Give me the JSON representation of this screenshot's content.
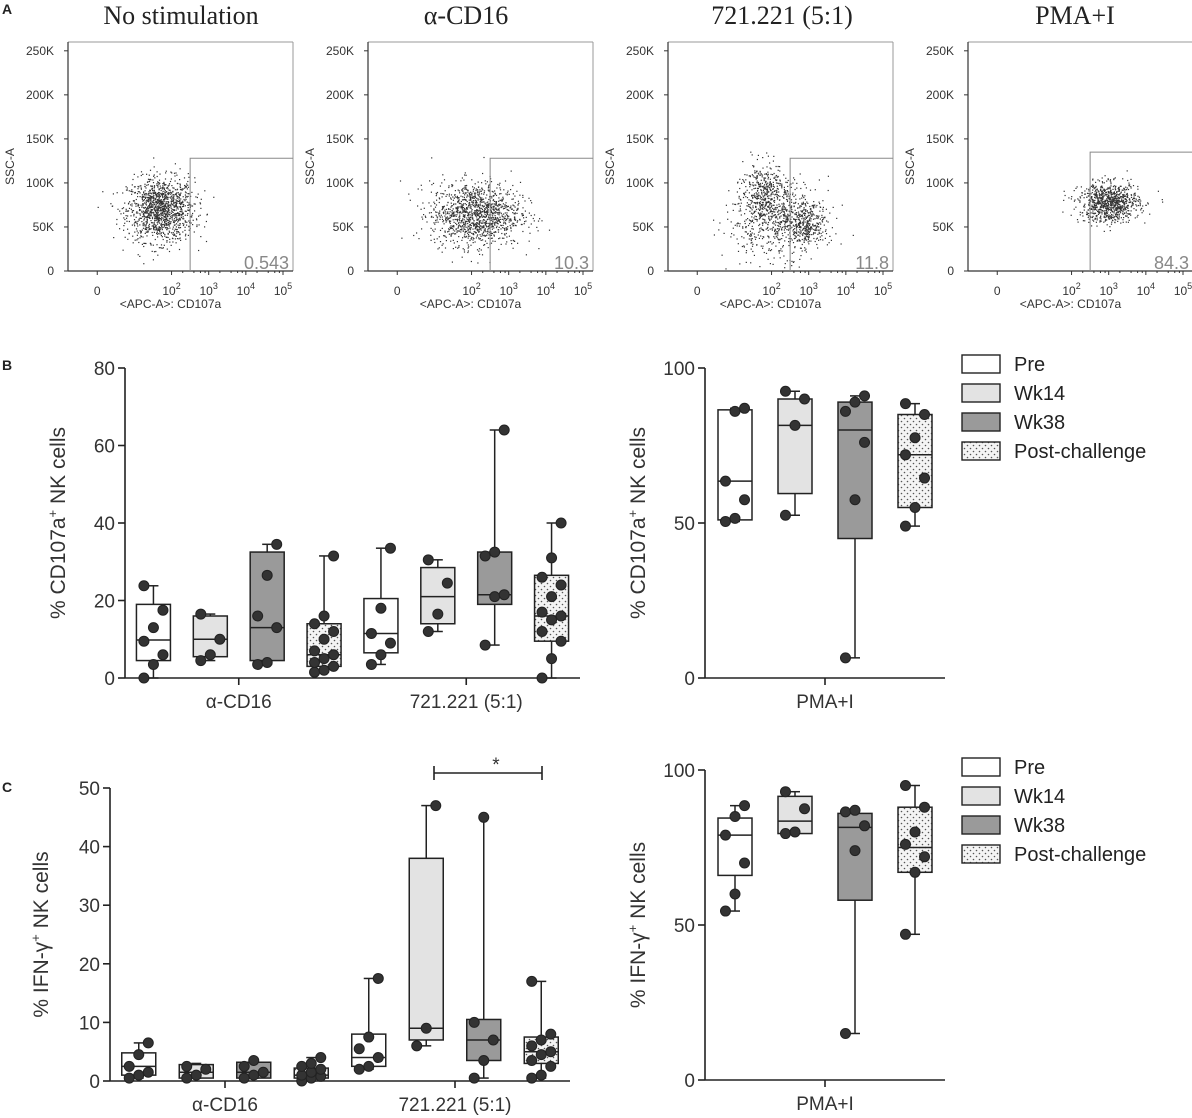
{
  "figure": {
    "panel_labels": [
      "A",
      "B",
      "C"
    ],
    "legend_b": [
      "Pre",
      "Wk14",
      "Wk38",
      "Post-challenge"
    ],
    "legend_c": [
      "Pre",
      "Wk14",
      "Wk38",
      "Post-challenge"
    ],
    "significance_mark": "*"
  },
  "chart_data": [
    {
      "type": "scatter",
      "title": "No stimulation",
      "xlabel": "<APC-A>: CD107a",
      "ylabel": "SSC-A",
      "y_ticks": [
        "0",
        "50K",
        "100K",
        "150K",
        "200K",
        "250K"
      ],
      "x_ticks": [
        "0",
        "10",
        "10",
        "10",
        "10"
      ],
      "x_tick_exponents": [
        "",
        "2",
        "3",
        "4",
        "5"
      ],
      "gate_percent": "0.543",
      "population": {
        "center_log_x": 1.7,
        "center_y": 70000,
        "spread_log_x": 0.45,
        "spread_y": 18000,
        "n": 1300
      }
    },
    {
      "type": "scatter",
      "title": "α-CD16",
      "xlabel": "<APC-A>: CD107a",
      "ylabel": "SSC-A",
      "y_ticks": [
        "0",
        "50K",
        "100K",
        "150K",
        "200K",
        "250K"
      ],
      "x_ticks": [
        "0",
        "10",
        "10",
        "10",
        "10"
      ],
      "x_tick_exponents": [
        "",
        "2",
        "3",
        "4",
        "5"
      ],
      "gate_percent": "10.3",
      "population": {
        "center_log_x": 2.1,
        "center_y": 65000,
        "spread_log_x": 0.6,
        "spread_y": 18000,
        "n": 1300
      }
    },
    {
      "type": "scatter",
      "title": "721.221 (5:1)",
      "xlabel": "<APC-A>: CD107a",
      "ylabel": "SSC-A",
      "y_ticks": [
        "0",
        "50K",
        "100K",
        "150K",
        "200K",
        "250K"
      ],
      "x_ticks": [
        "0",
        "10",
        "10",
        "10",
        "10"
      ],
      "x_tick_exponents": [
        "",
        "2",
        "3",
        "4",
        "5"
      ],
      "gate_percent": "11.8",
      "population": {
        "center_log_x": 2.1,
        "center_y": 62000,
        "spread_log_x": 0.6,
        "spread_y": 22000,
        "n": 1300
      }
    },
    {
      "type": "scatter",
      "title": "PMA+I",
      "xlabel": "<APC-A>: CD107a",
      "ylabel": "SSC-A",
      "y_ticks": [
        "0",
        "50K",
        "100K",
        "150K",
        "200K",
        "250K"
      ],
      "x_ticks": [
        "0",
        "10",
        "10",
        "10",
        "10"
      ],
      "x_tick_exponents": [
        "",
        "2",
        "3",
        "4",
        "5"
      ],
      "gate_percent": "84.3",
      "population": {
        "center_log_x": 3.0,
        "center_y": 78000,
        "spread_log_x": 0.4,
        "spread_y": 11000,
        "n": 900
      }
    },
    {
      "type": "box",
      "ylabel": "% CD107a+ NK cells",
      "ylabel_main": "% CD107a",
      "ylabel_sup": "+",
      "ylabel_rest": " NK cells",
      "ylim": [
        0,
        80
      ],
      "y_ticks": [
        "0",
        "20",
        "40",
        "60",
        "80"
      ],
      "categories": [
        "α-CD16",
        "721.221 (5:1)"
      ],
      "series": [
        {
          "name": "Pre",
          "fill": "#ffffff",
          "pattern": false,
          "boxes": [
            {
              "min": 0,
              "q1": 4.5,
              "median": 9.8,
              "q3": 19,
              "max": 23.8,
              "points": [
                0,
                3.5,
                6,
                9.5,
                13,
                17.5,
                23.8
              ]
            },
            {
              "min": 3.5,
              "q1": 6.5,
              "median": 11.5,
              "q3": 20.5,
              "max": 33.5,
              "points": [
                3.5,
                6,
                9,
                11.5,
                18,
                33.5
              ]
            }
          ]
        },
        {
          "name": "Wk14",
          "fill": "#e3e3e3",
          "pattern": false,
          "boxes": [
            {
              "min": 4.5,
              "q1": 5.5,
              "median": 10,
              "q3": 16,
              "max": 16.5,
              "points": [
                4.5,
                6,
                10,
                16.5
              ]
            },
            {
              "min": 12,
              "q1": 14,
              "median": 21,
              "q3": 28.5,
              "max": 30.5,
              "points": [
                12,
                16.5,
                24.5,
                30.5
              ]
            }
          ]
        },
        {
          "name": "Wk38",
          "fill": "#9a9a9a",
          "pattern": false,
          "boxes": [
            {
              "min": 3.5,
              "q1": 4.5,
              "median": 13,
              "q3": 32.5,
              "max": 34.5,
              "points": [
                3.5,
                4,
                13,
                16,
                26.5,
                34.5
              ]
            },
            {
              "min": 8.5,
              "q1": 19,
              "median": 21.5,
              "q3": 32.5,
              "max": 64,
              "points": [
                8.5,
                21,
                21.5,
                31.5,
                32.5,
                64
              ]
            }
          ]
        },
        {
          "name": "Post-challenge",
          "fill": "#f2f2f2",
          "pattern": true,
          "boxes": [
            {
              "min": 1.5,
              "q1": 3,
              "median": 6,
              "q3": 14,
              "max": 31.5,
              "points": [
                1.5,
                2,
                3,
                4,
                5,
                6,
                7,
                10,
                12,
                14,
                16,
                31.5
              ]
            },
            {
              "min": 0,
              "q1": 9.5,
              "median": 16,
              "q3": 26.5,
              "max": 40,
              "points": [
                0,
                5,
                9.5,
                12,
                15,
                16,
                17,
                21,
                24,
                26,
                31,
                40
              ]
            }
          ]
        }
      ]
    },
    {
      "type": "box",
      "ylabel": "% CD107a+ NK cells",
      "ylabel_main": "% CD107a",
      "ylabel_sup": "+",
      "ylabel_rest": " NK cells",
      "ylim": [
        0,
        100
      ],
      "y_ticks": [
        "0",
        "50",
        "100"
      ],
      "categories": [
        "PMA+I"
      ],
      "series": [
        {
          "name": "Pre",
          "fill": "#ffffff",
          "pattern": false,
          "boxes": [
            {
              "min": 50.5,
              "q1": 51,
              "median": 63.5,
              "q3": 86.5,
              "max": 87,
              "points": [
                50.5,
                51.5,
                57.5,
                63.5,
                86,
                87
              ]
            }
          ]
        },
        {
          "name": "Wk14",
          "fill": "#e3e3e3",
          "pattern": false,
          "boxes": [
            {
              "min": 52.5,
              "q1": 59.5,
              "median": 81.5,
              "q3": 90,
              "max": 92.5,
              "points": [
                52.5,
                81.5,
                90,
                92.5
              ]
            }
          ]
        },
        {
          "name": "Wk38",
          "fill": "#9a9a9a",
          "pattern": false,
          "boxes": [
            {
              "min": 6.5,
              "q1": 45,
              "median": 80,
              "q3": 89,
              "max": 91,
              "points": [
                6.5,
                57.5,
                76,
                86,
                89,
                91
              ]
            }
          ]
        },
        {
          "name": "Post-challenge",
          "fill": "#f2f2f2",
          "pattern": true,
          "boxes": [
            {
              "min": 49,
              "q1": 55,
              "median": 72,
              "q3": 85,
              "max": 88.5,
              "points": [
                49,
                55,
                64.5,
                72,
                77.5,
                85,
                88.5
              ]
            }
          ]
        }
      ]
    },
    {
      "type": "box",
      "ylabel": "% IFN-γ+ NK cells",
      "ylabel_main": "% IFN-γ",
      "ylabel_sup": "+",
      "ylabel_rest": " NK cells",
      "ylim": [
        0,
        50
      ],
      "y_ticks": [
        "0",
        "10",
        "20",
        "30",
        "40",
        "50"
      ],
      "categories": [
        "α-CD16",
        "721.221 (5:1)"
      ],
      "series": [
        {
          "name": "Pre",
          "fill": "#ffffff",
          "pattern": false,
          "boxes": [
            {
              "min": 0.5,
              "q1": 1,
              "median": 2.5,
              "q3": 4.8,
              "max": 6.5,
              "points": [
                0.5,
                1,
                1.5,
                2.5,
                4.5,
                6.5
              ]
            },
            {
              "min": 2,
              "q1": 2.5,
              "median": 4,
              "q3": 8,
              "max": 17.5,
              "points": [
                2,
                2.5,
                4,
                5.5,
                7.5,
                17.5
              ]
            }
          ]
        },
        {
          "name": "Wk14",
          "fill": "#e3e3e3",
          "pattern": false,
          "boxes": [
            {
              "min": 0.5,
              "q1": 0.5,
              "median": 1.5,
              "q3": 2.8,
              "max": 3,
              "points": [
                0.5,
                1,
                2,
                2.5
              ]
            },
            {
              "min": 6,
              "q1": 7,
              "median": 9,
              "q3": 38,
              "max": 47,
              "points": [
                6,
                9,
                47
              ]
            }
          ]
        },
        {
          "name": "Wk38",
          "fill": "#9a9a9a",
          "pattern": false,
          "boxes": [
            {
              "min": 0.5,
              "q1": 0.5,
              "median": 1.5,
              "q3": 3.2,
              "max": 3.5,
              "points": [
                0.5,
                1,
                1.5,
                2.5,
                3.5
              ]
            },
            {
              "min": 0.5,
              "q1": 3.5,
              "median": 7,
              "q3": 10.5,
              "max": 45,
              "points": [
                0.5,
                3.5,
                7,
                10,
                45
              ]
            }
          ]
        },
        {
          "name": "Post-challenge",
          "fill": "#f2f2f2",
          "pattern": true,
          "boxes": [
            {
              "min": 0,
              "q1": 0.5,
              "median": 1,
              "q3": 2.2,
              "max": 4,
              "points": [
                0,
                0.5,
                0.8,
                1,
                1.5,
                2,
                2.5,
                3,
                4
              ]
            },
            {
              "min": 0.5,
              "q1": 3,
              "median": 5,
              "q3": 7.5,
              "max": 17,
              "points": [
                0.5,
                1,
                2.5,
                3.5,
                4.5,
                5,
                6,
                7,
                8,
                17
              ]
            }
          ]
        }
      ]
    },
    {
      "type": "box",
      "ylabel": "% IFN-γ+ NK cells",
      "ylabel_main": "% IFN-γ",
      "ylabel_sup": "+",
      "ylabel_rest": " NK cells",
      "ylim": [
        0,
        100
      ],
      "y_ticks": [
        "0",
        "50",
        "100"
      ],
      "categories": [
        "PMA+I"
      ],
      "series": [
        {
          "name": "Pre",
          "fill": "#ffffff",
          "pattern": false,
          "boxes": [
            {
              "min": 54.5,
              "q1": 66,
              "median": 79,
              "q3": 84.5,
              "max": 88.5,
              "points": [
                54.5,
                60,
                70,
                79,
                85,
                88.5
              ]
            }
          ]
        },
        {
          "name": "Wk14",
          "fill": "#e3e3e3",
          "pattern": false,
          "boxes": [
            {
              "min": 79.5,
              "q1": 79.5,
              "median": 83.5,
              "q3": 91.5,
              "max": 93,
              "points": [
                79.5,
                80,
                87.5,
                93
              ]
            }
          ]
        },
        {
          "name": "Wk38",
          "fill": "#9a9a9a",
          "pattern": false,
          "boxes": [
            {
              "min": 15,
              "q1": 58,
              "median": 81.5,
              "q3": 86,
              "max": 87,
              "points": [
                15,
                74,
                82,
                86.5,
                87
              ]
            }
          ]
        },
        {
          "name": "Post-challenge",
          "fill": "#f2f2f2",
          "pattern": true,
          "boxes": [
            {
              "min": 47,
              "q1": 67,
              "median": 75,
              "q3": 88,
              "max": 95,
              "points": [
                47,
                67,
                72,
                76,
                80,
                88,
                95
              ]
            }
          ]
        }
      ]
    }
  ]
}
